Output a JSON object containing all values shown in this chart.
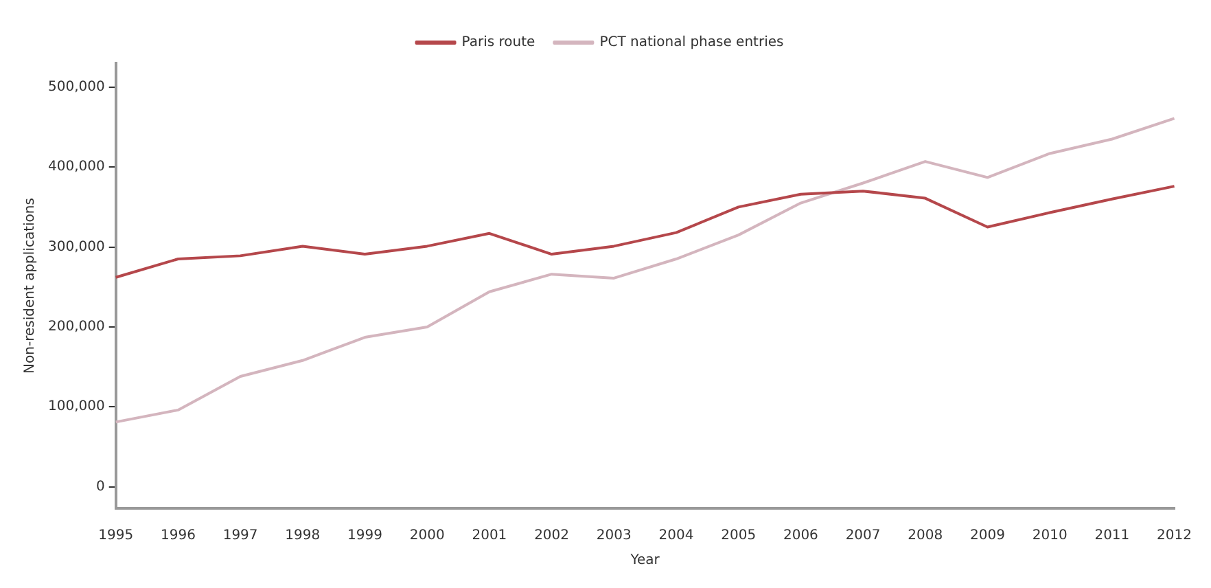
{
  "chart_data": {
    "type": "line",
    "xlabel": "Year",
    "ylabel": "Non-resident applications",
    "categories": [
      "1995",
      "1996",
      "1997",
      "1998",
      "1999",
      "2000",
      "2001",
      "2002",
      "2003",
      "2004",
      "2005",
      "2006",
      "2007",
      "2008",
      "2009",
      "2010",
      "2011",
      "2012"
    ],
    "series": [
      {
        "name": "Paris route",
        "color": "#b5474b",
        "values": [
          262000,
          285000,
          289000,
          301000,
          291000,
          301000,
          317000,
          291000,
          301000,
          318000,
          350000,
          366000,
          370000,
          361000,
          325000,
          343000,
          360000,
          376000
        ]
      },
      {
        "name": "PCT national phase entries",
        "color": "#d4b5be",
        "values": [
          81000,
          96000,
          138000,
          158000,
          187000,
          200000,
          244000,
          266000,
          261000,
          285000,
          315000,
          355000,
          380000,
          407000,
          387000,
          417000,
          435000,
          461000
        ]
      }
    ],
    "ylim": [
      -27000,
      530000
    ],
    "yticks": [
      {
        "value": 0,
        "label": "0"
      },
      {
        "value": 100000,
        "label": "100,000"
      },
      {
        "value": 200000,
        "label": "200,000"
      },
      {
        "value": 300000,
        "label": "300,000"
      },
      {
        "value": 400000,
        "label": "400,000"
      },
      {
        "value": 500000,
        "label": "500,000"
      }
    ],
    "grid": false,
    "legend": "top",
    "marker": "none",
    "line_style": "solid"
  }
}
